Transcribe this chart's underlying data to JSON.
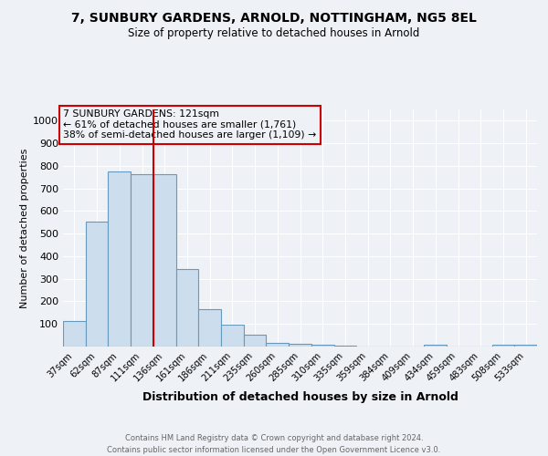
{
  "title1": "7, SUNBURY GARDENS, ARNOLD, NOTTINGHAM, NG5 8EL",
  "title2": "Size of property relative to detached houses in Arnold",
  "xlabel": "Distribution of detached houses by size in Arnold",
  "ylabel": "Number of detached properties",
  "categories": [
    "37sqm",
    "62sqm",
    "87sqm",
    "111sqm",
    "136sqm",
    "161sqm",
    "186sqm",
    "211sqm",
    "235sqm",
    "260sqm",
    "285sqm",
    "310sqm",
    "335sqm",
    "359sqm",
    "384sqm",
    "409sqm",
    "434sqm",
    "459sqm",
    "483sqm",
    "508sqm",
    "533sqm"
  ],
  "values": [
    112,
    554,
    775,
    762,
    762,
    342,
    165,
    97,
    54,
    16,
    12,
    8,
    5,
    0,
    0,
    0,
    8,
    0,
    0,
    8,
    8
  ],
  "bar_color": "#ccdded",
  "bar_edge_color": "#6699bb",
  "bar_edge_width": 0.8,
  "red_line_x": 3.5,
  "annotation_line1": "7 SUNBURY GARDENS: 121sqm",
  "annotation_line2": "← 61% of detached houses are smaller (1,761)",
  "annotation_line3": "38% of semi-detached houses are larger (1,109) →",
  "annotation_box_color": "#cc0000",
  "footer1": "Contains HM Land Registry data © Crown copyright and database right 2024.",
  "footer2": "Contains public sector information licensed under the Open Government Licence v3.0.",
  "ylim": [
    0,
    1000
  ],
  "yticks": [
    0,
    100,
    200,
    300,
    400,
    500,
    600,
    700,
    800,
    900,
    1000
  ],
  "bg_color": "#eef2f6",
  "plot_bg_color": "#eef2f6",
  "grid_color": "#ffffff"
}
